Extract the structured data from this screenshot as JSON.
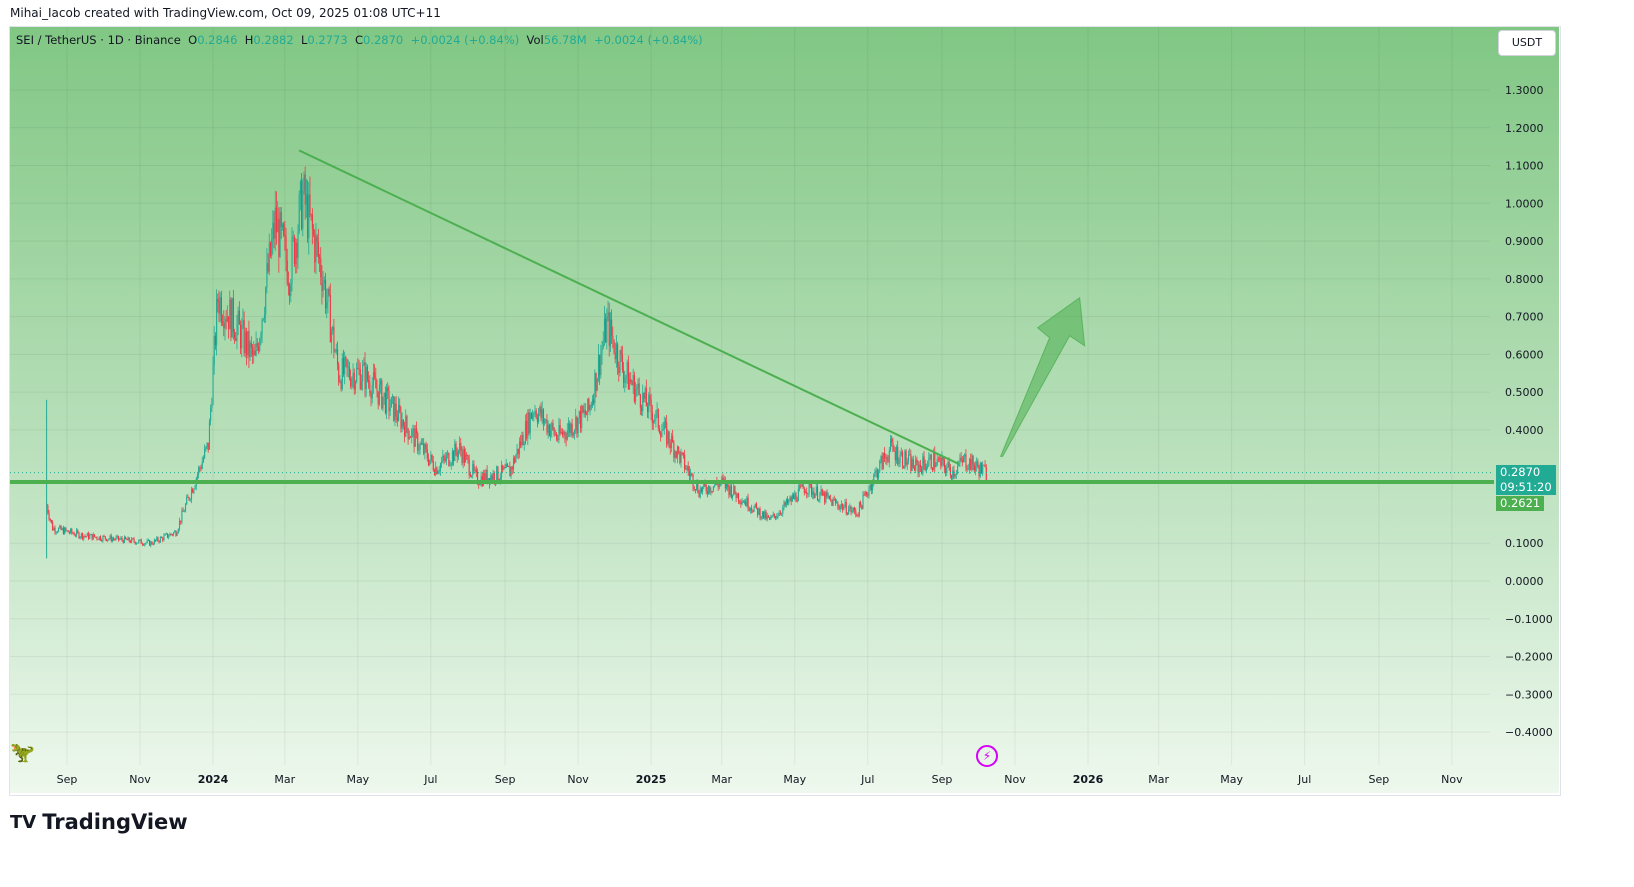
{
  "credit": "Mihai_Iacob created with TradingView.com, Oct 09, 2025 01:08 UTC+11",
  "legend": {
    "symbol": "SEI / TetherUS · 1D · Binance",
    "o_label": "O",
    "o": "0.2846",
    "h_label": "H",
    "h": "0.2882",
    "l_label": "L",
    "l": "0.2773",
    "c_label": "C",
    "c": "0.2870",
    "change": "+0.0024 (+0.84%)",
    "vol_label": "Vol",
    "vol": "56.78M",
    "vol_change": "+0.0024 (+0.84%)"
  },
  "currency_button": "USDT",
  "price_tag": {
    "price": "0.2870",
    "countdown": "09:51:20"
  },
  "support_tag": "0.2621",
  "brand": "TradingView",
  "colors": {
    "up": "#22ab94",
    "down": "#f23645",
    "line": "#4caf50",
    "tag": "#22ab94"
  },
  "chart_data": {
    "type": "candlestick",
    "title": "SEI / TetherUS · 1D · Binance",
    "ylim": [
      -0.45,
      1.37
    ],
    "y_ticks": [
      "1.3000",
      "1.2000",
      "1.1000",
      "1.0000",
      "0.9000",
      "0.8000",
      "0.7000",
      "0.6000",
      "0.5000",
      "0.4000",
      "0.1000",
      "0.0000",
      "−0.1000",
      "−0.2000",
      "−0.3000",
      "−0.4000"
    ],
    "y_tick_values": [
      1.3,
      1.2,
      1.1,
      1.0,
      0.9,
      0.8,
      0.7,
      0.6,
      0.5,
      0.4,
      0.1,
      0.0,
      -0.1,
      -0.2,
      -0.3,
      -0.4
    ],
    "x_ticks": [
      [
        "Sep",
        "2023-09-01"
      ],
      [
        "Nov",
        "2023-11-01"
      ],
      [
        "2024",
        "2024-01-01"
      ],
      [
        "Mar",
        "2024-03-01"
      ],
      [
        "May",
        "2024-05-01"
      ],
      [
        "Jul",
        "2024-07-01"
      ],
      [
        "Sep",
        "2024-09-01"
      ],
      [
        "Nov",
        "2024-11-01"
      ],
      [
        "2025",
        "2025-01-01"
      ],
      [
        "Mar",
        "2025-03-01"
      ],
      [
        "May",
        "2025-05-01"
      ],
      [
        "Jul",
        "2025-07-01"
      ],
      [
        "Sep",
        "2025-09-01"
      ],
      [
        "Nov",
        "2025-11-01"
      ],
      [
        "2026",
        "2026-01-01"
      ],
      [
        "Mar",
        "2026-03-01"
      ],
      [
        "May",
        "2026-05-01"
      ],
      [
        "Jul",
        "2026-07-01"
      ],
      [
        "Sep",
        "2026-09-01"
      ],
      [
        "Nov",
        "2026-11-01"
      ]
    ],
    "price_path": [
      [
        "2023-08-15",
        0.2
      ],
      [
        "2023-08-20",
        0.14
      ],
      [
        "2023-09-15",
        0.12
      ],
      [
        "2023-10-15",
        0.11
      ],
      [
        "2023-11-10",
        0.1
      ],
      [
        "2023-12-01",
        0.13
      ],
      [
        "2023-12-15",
        0.25
      ],
      [
        "2023-12-28",
        0.36
      ],
      [
        "2024-01-05",
        0.75
      ],
      [
        "2024-01-20",
        0.68
      ],
      [
        "2024-02-05",
        0.58
      ],
      [
        "2024-02-22",
        0.95
      ],
      [
        "2024-03-05",
        0.82
      ],
      [
        "2024-03-16",
        1.02
      ],
      [
        "2024-04-01",
        0.82
      ],
      [
        "2024-04-15",
        0.55
      ],
      [
        "2024-05-05",
        0.55
      ],
      [
        "2024-06-01",
        0.45
      ],
      [
        "2024-07-05",
        0.3
      ],
      [
        "2024-07-25",
        0.35
      ],
      [
        "2024-08-08",
        0.27
      ],
      [
        "2024-09-05",
        0.29
      ],
      [
        "2024-09-25",
        0.46
      ],
      [
        "2024-10-15",
        0.38
      ],
      [
        "2024-11-10",
        0.45
      ],
      [
        "2024-11-25",
        0.68
      ],
      [
        "2024-12-10",
        0.55
      ],
      [
        "2025-01-01",
        0.45
      ],
      [
        "2025-01-25",
        0.33
      ],
      [
        "2025-02-10",
        0.24
      ],
      [
        "2025-03-01",
        0.26
      ],
      [
        "2025-03-25",
        0.2
      ],
      [
        "2025-04-10",
        0.16
      ],
      [
        "2025-05-10",
        0.25
      ],
      [
        "2025-06-01",
        0.21
      ],
      [
        "2025-06-22",
        0.18
      ],
      [
        "2025-07-10",
        0.3
      ],
      [
        "2025-07-20",
        0.35
      ],
      [
        "2025-08-10",
        0.3
      ],
      [
        "2025-08-25",
        0.32
      ],
      [
        "2025-09-10",
        0.29
      ],
      [
        "2025-09-20",
        0.32
      ],
      [
        "2025-10-08",
        0.287
      ]
    ],
    "trendline": [
      [
        "2024-03-13",
        1.14
      ],
      [
        "2025-09-15",
        0.31
      ]
    ],
    "support_level": 0.2621,
    "projection_arrow": [
      [
        "2025-10-20",
        0.33
      ],
      [
        "2025-12-25",
        0.75
      ]
    ]
  }
}
